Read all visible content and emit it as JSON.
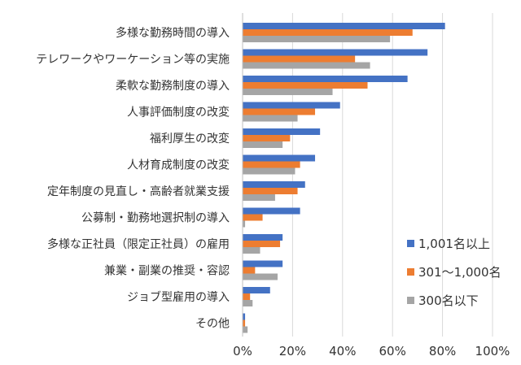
{
  "chart_data": {
    "type": "bar",
    "orientation": "horizontal",
    "categories": [
      "多様な勤務時間の導入",
      "テレワークやワーケーション等の実施",
      "柔軟な勤務制度の導入",
      "人事評価制度の改変",
      "福利厚生の改変",
      "人材育成制度の改変",
      "定年制度の見直し・高齢者就業支援",
      "公募制・勤務地選択制の導入",
      "多様な正社員（限定正社員）の雇用",
      "兼業・副業の推奨・容認",
      "ジョブ型雇用の導入",
      "その他"
    ],
    "series": [
      {
        "name": "1,001名以上",
        "color": "#4472C4",
        "values": [
          81,
          74,
          66,
          39,
          31,
          29,
          25,
          23,
          16,
          16,
          11,
          1
        ]
      },
      {
        "name": "301～1,000名",
        "color": "#ED7D31",
        "values": [
          68,
          45,
          50,
          29,
          19,
          23,
          22,
          8,
          15,
          5,
          3,
          1
        ]
      },
      {
        "name": "300名以下",
        "color": "#A5A5A5",
        "values": [
          59,
          51,
          36,
          22,
          16,
          21,
          13,
          1,
          7,
          14,
          4,
          2
        ]
      }
    ],
    "x_ticks": [
      "0%",
      "20%",
      "40%",
      "60%",
      "80%",
      "100%"
    ],
    "xlim": [
      0,
      100
    ],
    "grid": "vertical",
    "legend_position": "bottom-right"
  }
}
